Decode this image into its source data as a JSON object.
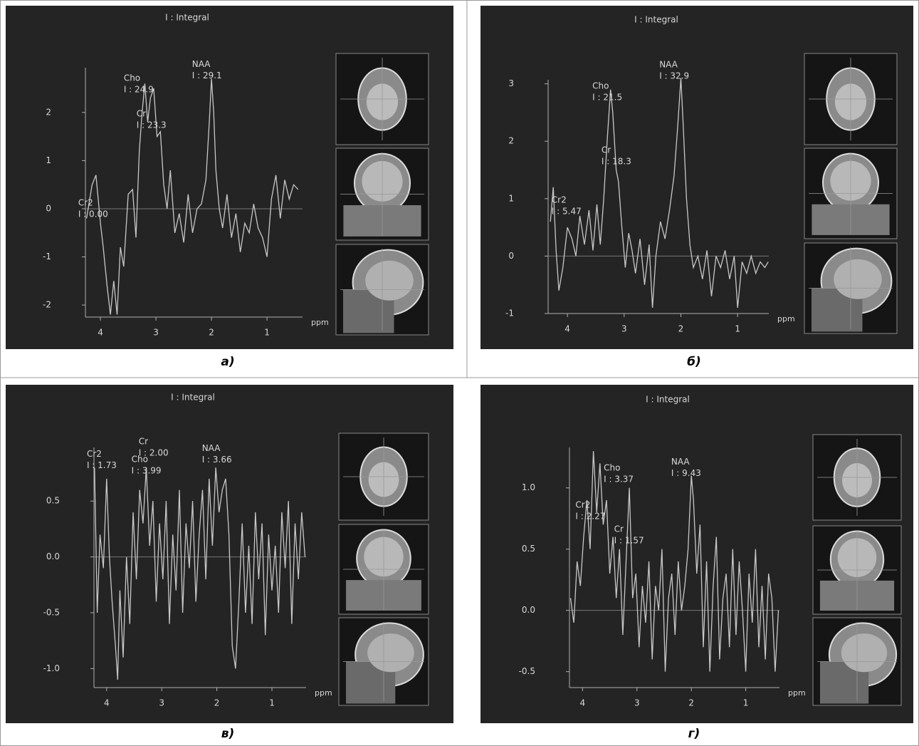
{
  "chart_data": [
    {
      "type": "line",
      "title": "I : Integral",
      "caption": "а)",
      "xlabel": "ppm",
      "color": "#c8c8c8",
      "xlim": [
        4.27,
        0.36
      ],
      "ylim": [
        -2.25,
        2.93
      ],
      "xticks": [
        4,
        3,
        2,
        1
      ],
      "yticks": [
        -2,
        -1,
        0,
        1,
        2
      ],
      "x": [
        4.25,
        4.15,
        4.08,
        4.0,
        3.95,
        3.88,
        3.82,
        3.76,
        3.7,
        3.64,
        3.58,
        3.5,
        3.42,
        3.36,
        3.3,
        3.25,
        3.2,
        3.15,
        3.1,
        3.04,
        2.98,
        2.92,
        2.86,
        2.8,
        2.74,
        2.66,
        2.58,
        2.5,
        2.42,
        2.34,
        2.26,
        2.18,
        2.1,
        2.04,
        2.0,
        1.96,
        1.92,
        1.86,
        1.8,
        1.72,
        1.64,
        1.56,
        1.48,
        1.4,
        1.32,
        1.24,
        1.16,
        1.08,
        1.0,
        0.92,
        0.84,
        0.76,
        0.68,
        0.6,
        0.52,
        0.44
      ],
      "values": [
        -0.2,
        0.5,
        0.7,
        -0.3,
        -0.8,
        -1.6,
        -2.2,
        -1.5,
        -2.2,
        -0.8,
        -1.2,
        0.3,
        0.4,
        -0.6,
        1.2,
        2.0,
        2.6,
        1.8,
        2.3,
        2.5,
        1.5,
        1.6,
        0.5,
        0.0,
        0.8,
        -0.5,
        -0.1,
        -0.7,
        0.3,
        -0.5,
        0.0,
        0.1,
        0.6,
        1.8,
        2.7,
        2.0,
        0.8,
        0.0,
        -0.4,
        0.3,
        -0.6,
        -0.1,
        -0.9,
        -0.3,
        -0.5,
        0.1,
        -0.4,
        -0.6,
        -1.0,
        0.2,
        0.7,
        -0.2,
        0.6,
        0.2,
        0.5,
        0.4
      ],
      "annotations": [
        {
          "name": "Cho",
          "integral": "I : 24.9",
          "x": 3.58,
          "y": 2.71
        },
        {
          "name": "Cr",
          "integral": "I : 23.3",
          "x": 3.35,
          "y": 1.97
        },
        {
          "name": "NAA",
          "integral": "I : 29.1",
          "x": 2.35,
          "y": 3.0
        },
        {
          "name": "Cr2",
          "integral": "I : 0.00",
          "x": 4.4,
          "y": 0.12
        }
      ]
    },
    {
      "type": "line",
      "title": "I : Integral",
      "caption": "б)",
      "xlabel": "ppm",
      "color": "#c8c8c8",
      "xlim": [
        4.34,
        0.45
      ],
      "ylim": [
        -1,
        3.07
      ],
      "xticks": [
        4,
        3,
        2,
        1
      ],
      "yticks": [
        -1,
        0,
        1,
        2,
        3
      ],
      "x": [
        4.3,
        4.25,
        4.2,
        4.15,
        4.08,
        4.0,
        3.92,
        3.85,
        3.78,
        3.7,
        3.62,
        3.55,
        3.48,
        3.42,
        3.36,
        3.3,
        3.24,
        3.2,
        3.14,
        3.1,
        3.04,
        2.98,
        2.92,
        2.86,
        2.8,
        2.72,
        2.64,
        2.56,
        2.5,
        2.44,
        2.36,
        2.28,
        2.2,
        2.12,
        2.06,
        2.0,
        1.96,
        1.9,
        1.84,
        1.78,
        1.7,
        1.62,
        1.54,
        1.46,
        1.38,
        1.3,
        1.22,
        1.14,
        1.06,
        1.0,
        0.92,
        0.84,
        0.76,
        0.68,
        0.6,
        0.52,
        0.46
      ],
      "values": [
        0.6,
        1.2,
        0.1,
        -0.6,
        -0.2,
        0.5,
        0.3,
        0.0,
        0.7,
        0.2,
        0.8,
        0.1,
        0.9,
        0.2,
        1.0,
        2.0,
        2.9,
        2.5,
        1.5,
        1.3,
        0.5,
        -0.2,
        0.4,
        0.1,
        -0.3,
        0.3,
        -0.5,
        0.2,
        -0.9,
        0.0,
        0.6,
        0.3,
        0.8,
        1.4,
        2.2,
        3.1,
        2.3,
        1.0,
        0.2,
        -0.2,
        0.0,
        -0.4,
        0.1,
        -0.7,
        0.0,
        -0.2,
        0.1,
        -0.4,
        0.0,
        -0.9,
        -0.1,
        -0.3,
        0.0,
        -0.3,
        -0.1,
        -0.2,
        -0.1
      ],
      "annotations": [
        {
          "name": "Cho",
          "integral": "I : 21.5",
          "x": 3.56,
          "y": 2.96
        },
        {
          "name": "Cr",
          "integral": "I : 18.3",
          "x": 3.4,
          "y": 1.84
        },
        {
          "name": "NAA",
          "integral": "I : 32.9",
          "x": 2.38,
          "y": 3.33
        },
        {
          "name": "Cr2",
          "integral": "I : 5.47",
          "x": 4.28,
          "y": 0.97
        }
      ]
    },
    {
      "type": "line",
      "title": "I : Integral",
      "caption": "в)",
      "xlabel": "ppm",
      "color": "#c8c8c8",
      "xlim": [
        4.23,
        0.38
      ],
      "ylim": [
        -1.17,
        0.98
      ],
      "xticks": [
        4,
        3,
        2,
        1
      ],
      "yticks": [
        {
          "value": -1,
          "label": "-1.0"
        },
        -0.5,
        {
          "value": 0,
          "label": "0.0"
        },
        0.5
      ],
      "x": [
        4.22,
        4.17,
        4.12,
        4.06,
        4.0,
        3.95,
        3.9,
        3.84,
        3.8,
        3.76,
        3.7,
        3.64,
        3.58,
        3.52,
        3.46,
        3.4,
        3.34,
        3.28,
        3.22,
        3.16,
        3.1,
        3.04,
        2.98,
        2.92,
        2.86,
        2.8,
        2.74,
        2.68,
        2.62,
        2.56,
        2.5,
        2.44,
        2.38,
        2.32,
        2.26,
        2.2,
        2.14,
        2.08,
        2.02,
        1.96,
        1.9,
        1.84,
        1.78,
        1.72,
        1.66,
        1.6,
        1.54,
        1.48,
        1.42,
        1.36,
        1.3,
        1.24,
        1.18,
        1.12,
        1.06,
        1.0,
        0.94,
        0.88,
        0.82,
        0.76,
        0.7,
        0.64,
        0.58,
        0.52,
        0.46,
        0.4
      ],
      "values": [
        0.8,
        -0.5,
        0.2,
        -0.1,
        0.7,
        0.0,
        -0.4,
        -0.8,
        -1.1,
        -0.3,
        -0.9,
        0.0,
        -0.6,
        0.4,
        -0.2,
        0.6,
        0.3,
        0.8,
        0.1,
        0.5,
        -0.4,
        0.3,
        -0.2,
        0.5,
        -0.6,
        0.2,
        -0.3,
        0.6,
        -0.5,
        0.3,
        -0.1,
        0.5,
        -0.4,
        0.2,
        0.6,
        -0.2,
        0.7,
        0.1,
        0.8,
        0.4,
        0.6,
        0.7,
        0.2,
        -0.8,
        -1.0,
        -0.4,
        0.3,
        -0.5,
        0.1,
        -0.6,
        0.4,
        -0.2,
        0.3,
        -0.7,
        0.2,
        -0.3,
        0.1,
        -0.5,
        0.4,
        -0.1,
        0.5,
        -0.6,
        0.3,
        -0.2,
        0.4,
        0.0
      ],
      "annotations": [
        {
          "name": "Cr2",
          "integral": "I : 1.73",
          "x": 4.36,
          "y": 0.92
        },
        {
          "name": "Cr",
          "integral": "I : 2.00",
          "x": 3.42,
          "y": 1.03
        },
        {
          "name": "Cho",
          "integral": "I : 3.99",
          "x": 3.55,
          "y": 0.87
        },
        {
          "name": "NAA",
          "integral": "I : 3.66",
          "x": 2.27,
          "y": 0.97
        }
      ]
    },
    {
      "type": "line",
      "title": "I : Integral",
      "caption": "г)",
      "xlabel": "ppm",
      "color": "#c8c8c8",
      "xlim": [
        4.24,
        0.38
      ],
      "ylim": [
        -0.63,
        1.33
      ],
      "xticks": [
        4,
        3,
        2,
        1
      ],
      "yticks": [
        -0.5,
        {
          "value": 0,
          "label": "0.0"
        },
        0.5,
        {
          "value": 1,
          "label": "1.0"
        }
      ],
      "x": [
        4.22,
        4.16,
        4.1,
        4.04,
        3.98,
        3.92,
        3.86,
        3.8,
        3.74,
        3.68,
        3.62,
        3.56,
        3.5,
        3.44,
        3.38,
        3.32,
        3.26,
        3.2,
        3.14,
        3.08,
        3.02,
        2.96,
        2.9,
        2.84,
        2.78,
        2.72,
        2.66,
        2.6,
        2.54,
        2.48,
        2.42,
        2.36,
        2.3,
        2.24,
        2.18,
        2.12,
        2.06,
        2.0,
        1.96,
        1.9,
        1.84,
        1.78,
        1.72,
        1.66,
        1.6,
        1.54,
        1.48,
        1.42,
        1.36,
        1.3,
        1.24,
        1.18,
        1.12,
        1.06,
        1.0,
        0.94,
        0.88,
        0.82,
        0.76,
        0.7,
        0.64,
        0.58,
        0.52,
        0.46,
        0.4
      ],
      "values": [
        0.1,
        -0.1,
        0.4,
        0.2,
        0.6,
        0.9,
        0.5,
        1.3,
        0.8,
        1.2,
        0.7,
        0.9,
        0.3,
        0.6,
        0.1,
        0.5,
        -0.2,
        0.4,
        1.0,
        0.1,
        0.3,
        -0.3,
        0.2,
        -0.1,
        0.4,
        -0.4,
        0.2,
        0.0,
        0.5,
        -0.5,
        0.1,
        0.3,
        -0.2,
        0.4,
        0.0,
        0.2,
        0.5,
        1.1,
        0.9,
        0.3,
        0.7,
        -0.3,
        0.4,
        -0.5,
        0.2,
        0.6,
        -0.4,
        0.1,
        0.3,
        -0.3,
        0.5,
        -0.2,
        0.4,
        0.0,
        -0.5,
        0.3,
        -0.1,
        0.5,
        -0.3,
        0.2,
        -0.4,
        0.3,
        0.1,
        -0.5,
        0.0
      ],
      "annotations": [
        {
          "name": "Cho",
          "integral": "I : 3.37",
          "x": 3.61,
          "y": 1.16
        },
        {
          "name": "Cr2",
          "integral": "I : 2.27",
          "x": 4.13,
          "y": 0.86
        },
        {
          "name": "Cr",
          "integral": "I : 1.57",
          "x": 3.42,
          "y": 0.66
        },
        {
          "name": "NAA",
          "integral": "I : 9.43",
          "x": 2.37,
          "y": 1.21
        }
      ]
    }
  ]
}
